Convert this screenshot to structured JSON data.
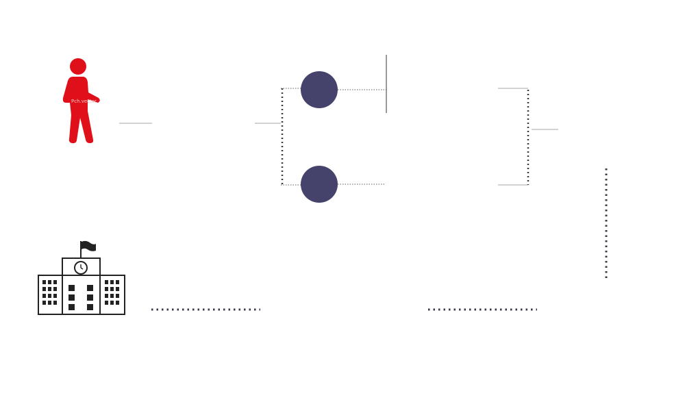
{
  "diagram": {
    "icons": {
      "person": "walking-person-icon",
      "school": "school-building-icon",
      "flag": "flag-icon",
      "clock": "clock-icon"
    },
    "colors": {
      "person": "#e0101a",
      "node": "#45436b",
      "connector_light": "#c4c4c4",
      "connector_dark": "#5a5a5a",
      "dots": "#3a3a4a",
      "building_stroke": "#222222",
      "building_fill": "#ffffff"
    },
    "watermark": "Pch.vector"
  }
}
